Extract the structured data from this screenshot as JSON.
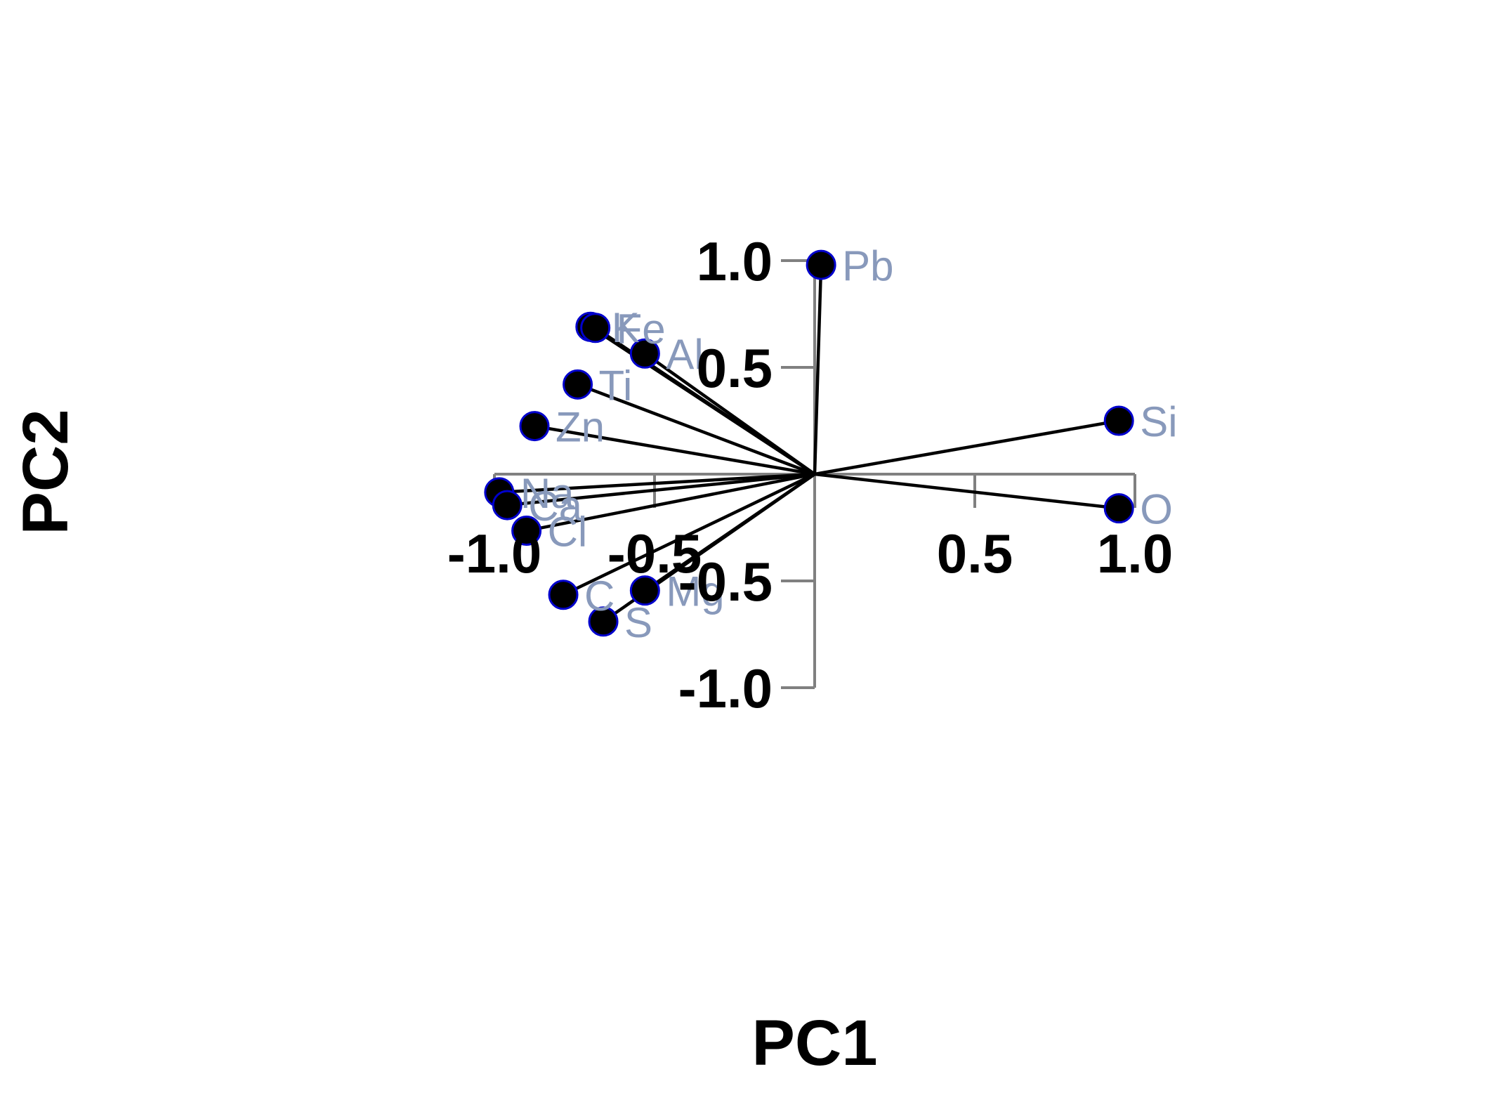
{
  "chart_data": {
    "type": "scatter",
    "subtype": "pca-loadings-biplot",
    "xlabel": "PC1",
    "ylabel": "PC2",
    "xlim": [
      -1.0,
      1.0
    ],
    "ylim": [
      -1.0,
      1.0
    ],
    "x_ticks": [
      -1.0,
      -0.5,
      0.5,
      1.0
    ],
    "x_tick_labels": [
      "-1.0",
      "-0.5",
      "0.5",
      "1.0"
    ],
    "y_ticks": [
      1.0,
      0.5,
      -0.5,
      -1.0
    ],
    "y_tick_labels": [
      "1.0",
      "0.5",
      "-0.5",
      "-1.0"
    ],
    "grid": false,
    "legend": "none",
    "axes_through_origin": true,
    "colors": {
      "axis": "#808080",
      "vector": "#000000",
      "point_fill": "#000000",
      "point_edge": "#0000cc",
      "label": "#8899bb"
    },
    "points": [
      {
        "label": "Pb",
        "x": 0.02,
        "y": 0.98
      },
      {
        "label": "K",
        "x": -0.7,
        "y": 0.69
      },
      {
        "label": "Fe",
        "x": -0.685,
        "y": 0.685
      },
      {
        "label": "Al",
        "x": -0.53,
        "y": 0.565
      },
      {
        "label": "Ti",
        "x": -0.74,
        "y": 0.42
      },
      {
        "label": "Zn",
        "x": -0.875,
        "y": 0.225
      },
      {
        "label": "Si",
        "x": 0.95,
        "y": 0.25
      },
      {
        "label": "Na",
        "x": -0.985,
        "y": -0.085
      },
      {
        "label": "Ca",
        "x": -0.96,
        "y": -0.145
      },
      {
        "label": "Cl",
        "x": -0.9,
        "y": -0.265
      },
      {
        "label": "O",
        "x": 0.95,
        "y": -0.16
      },
      {
        "label": "C",
        "x": -0.785,
        "y": -0.565
      },
      {
        "label": "Mg",
        "x": -0.53,
        "y": -0.545
      },
      {
        "label": "S",
        "x": -0.66,
        "y": -0.69
      }
    ]
  }
}
